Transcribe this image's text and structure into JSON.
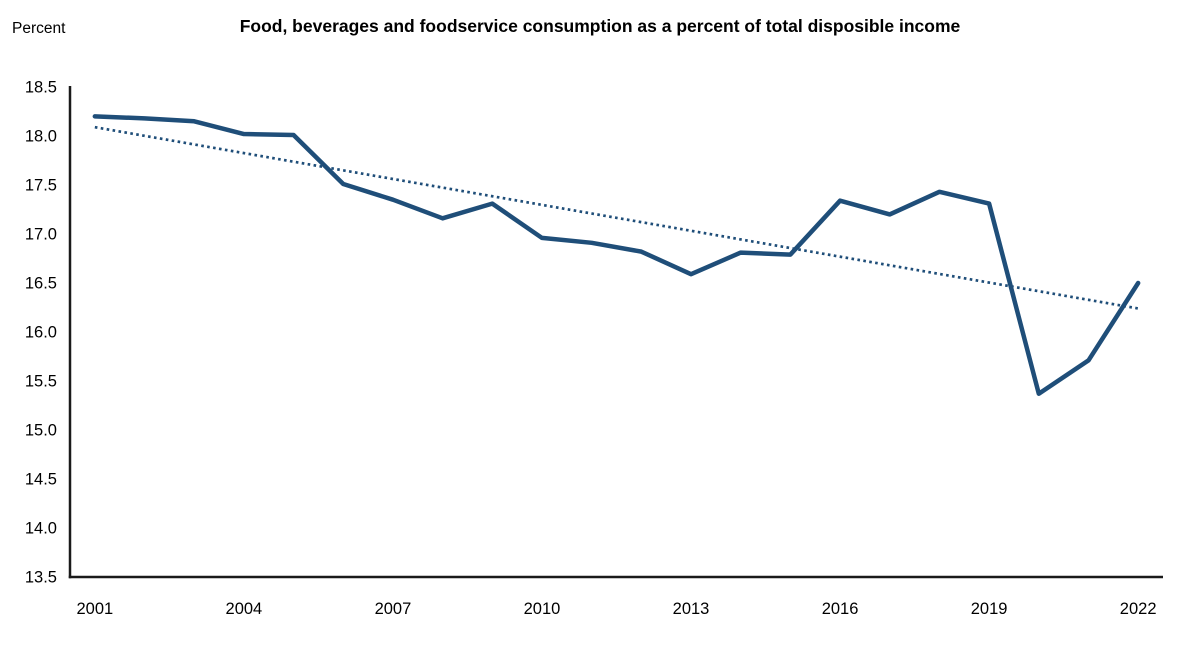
{
  "header": {
    "title": "Food, beverages and foodservice consumption as a percent of total disposible income",
    "y_axis_unit_label": "Percent"
  },
  "chart_data": {
    "type": "line",
    "title": "Food, beverages and foodservice consumption as a percent of total disposible income",
    "ylabel": "Percent",
    "xlabel": "",
    "ylim": [
      13.5,
      18.5
    ],
    "y_ticks": [
      18.5,
      18.0,
      17.5,
      17.0,
      16.5,
      16.0,
      15.5,
      15.0,
      14.5,
      14.0,
      13.5
    ],
    "x_ticks": [
      2001,
      2004,
      2007,
      2010,
      2013,
      2016,
      2019,
      2022
    ],
    "x": [
      2001,
      2002,
      2003,
      2004,
      2005,
      2006,
      2007,
      2008,
      2009,
      2010,
      2011,
      2012,
      2013,
      2014,
      2015,
      2016,
      2017,
      2018,
      2019,
      2020,
      2021,
      2022
    ],
    "series": [
      {
        "name": "Food, beverages and foodservice consumption as a percent of total disposible income",
        "style": "solid",
        "color": "#1f4e79",
        "values": [
          18.2,
          18.18,
          18.15,
          18.02,
          18.01,
          17.51,
          17.35,
          17.16,
          17.31,
          16.96,
          16.91,
          16.82,
          16.59,
          16.81,
          16.79,
          17.34,
          17.2,
          17.43,
          17.31,
          15.37,
          15.71,
          16.5
        ]
      },
      {
        "name": "Linear trend",
        "style": "dotted",
        "color": "#1f4e79",
        "x_endpoints": [
          2001,
          2022
        ],
        "values": [
          18.09,
          16.24
        ]
      }
    ],
    "grid": false,
    "legend": "none",
    "axis_color": "#1a1a1a"
  }
}
